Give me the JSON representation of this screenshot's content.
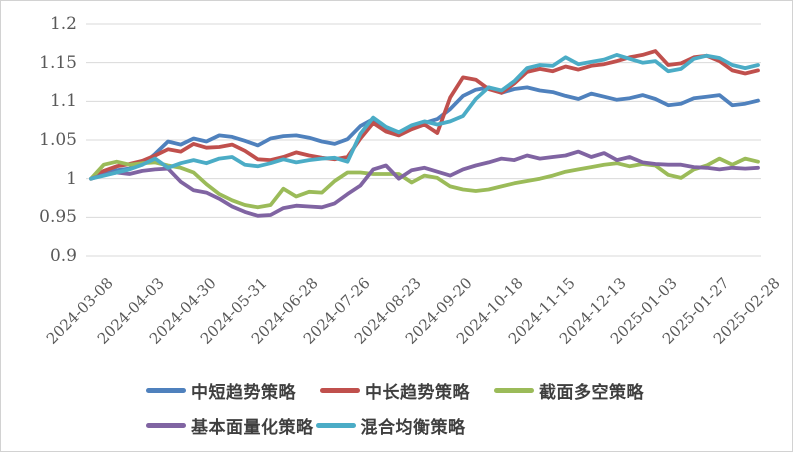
{
  "chart_data": {
    "type": "line",
    "title": "",
    "xlabel": "",
    "ylabel": "",
    "ylim": [
      0.9,
      1.2
    ],
    "grid": true,
    "legend_position": "bottom",
    "y_ticks": [
      "1.2",
      "1.15",
      "1.1",
      "1.05",
      "1",
      "0.95",
      "0.9"
    ],
    "x_labels": [
      "2024-03-08",
      "2024-04-03",
      "2024-04-30",
      "2024-05-31",
      "2024-06-28",
      "2024-07-26",
      "2024-08-23",
      "2024-09-20",
      "2024-10-18",
      "2024-11-15",
      "2024-12-13",
      "2025-01-03",
      "2025-01-27",
      "2025-02-28"
    ],
    "x_label_step": 4,
    "n_points": 53,
    "grid_color": "#d9d9d9",
    "series": [
      {
        "name": "中短趋势策略",
        "color": "#4F81BD",
        "values": [
          1.0,
          1.007,
          1.011,
          1.013,
          1.018,
          1.032,
          1.048,
          1.044,
          1.052,
          1.048,
          1.056,
          1.054,
          1.049,
          1.043,
          1.052,
          1.055,
          1.056,
          1.053,
          1.048,
          1.045,
          1.051,
          1.068,
          1.077,
          1.065,
          1.057,
          1.068,
          1.072,
          1.077,
          1.09,
          1.107,
          1.115,
          1.118,
          1.111,
          1.116,
          1.118,
          1.114,
          1.112,
          1.107,
          1.103,
          1.11,
          1.106,
          1.102,
          1.104,
          1.108,
          1.103,
          1.095,
          1.097,
          1.104,
          1.106,
          1.108,
          1.095,
          1.097,
          1.101
        ]
      },
      {
        "name": "中长趋势策略",
        "color": "#C0504D",
        "values": [
          1.0,
          1.01,
          1.016,
          1.019,
          1.023,
          1.03,
          1.038,
          1.035,
          1.045,
          1.04,
          1.041,
          1.044,
          1.036,
          1.025,
          1.024,
          1.028,
          1.034,
          1.03,
          1.027,
          1.025,
          1.028,
          1.052,
          1.072,
          1.061,
          1.056,
          1.064,
          1.07,
          1.059,
          1.105,
          1.131,
          1.128,
          1.116,
          1.111,
          1.123,
          1.138,
          1.142,
          1.139,
          1.145,
          1.141,
          1.146,
          1.148,
          1.152,
          1.157,
          1.16,
          1.165,
          1.147,
          1.149,
          1.157,
          1.159,
          1.152,
          1.14,
          1.136,
          1.14
        ]
      },
      {
        "name": "截面多空策略",
        "color": "#9BBB59",
        "values": [
          1.0,
          1.018,
          1.022,
          1.018,
          1.02,
          1.021,
          1.017,
          1.014,
          1.008,
          0.993,
          0.98,
          0.972,
          0.966,
          0.963,
          0.966,
          0.987,
          0.977,
          0.983,
          0.982,
          0.997,
          1.008,
          1.008,
          1.006,
          1.006,
          1.006,
          0.995,
          1.004,
          1.001,
          0.99,
          0.986,
          0.984,
          0.986,
          0.99,
          0.994,
          0.997,
          1.0,
          1.004,
          1.009,
          1.012,
          1.015,
          1.018,
          1.02,
          1.016,
          1.019,
          1.017,
          1.005,
          1.001,
          1.012,
          1.017,
          1.026,
          1.018,
          1.026,
          1.022
        ]
      },
      {
        "name": "基本面量化策略",
        "color": "#8064A2",
        "values": [
          1.0,
          1.005,
          1.008,
          1.006,
          1.01,
          1.012,
          1.013,
          0.996,
          0.985,
          0.982,
          0.974,
          0.964,
          0.957,
          0.952,
          0.953,
          0.962,
          0.965,
          0.964,
          0.963,
          0.968,
          0.98,
          0.991,
          1.012,
          1.017,
          1.0,
          1.011,
          1.014,
          1.009,
          1.004,
          1.012,
          1.017,
          1.021,
          1.026,
          1.024,
          1.03,
          1.026,
          1.028,
          1.03,
          1.035,
          1.028,
          1.033,
          1.024,
          1.028,
          1.021,
          1.019,
          1.018,
          1.018,
          1.015,
          1.014,
          1.012,
          1.014,
          1.013,
          1.014
        ]
      },
      {
        "name": "混合均衡策略",
        "color": "#4BACC6",
        "values": [
          1.0,
          1.004,
          1.008,
          1.012,
          1.018,
          1.026,
          1.014,
          1.02,
          1.024,
          1.02,
          1.026,
          1.028,
          1.018,
          1.016,
          1.02,
          1.025,
          1.021,
          1.024,
          1.026,
          1.027,
          1.022,
          1.058,
          1.079,
          1.067,
          1.06,
          1.069,
          1.074,
          1.07,
          1.074,
          1.081,
          1.103,
          1.118,
          1.114,
          1.126,
          1.143,
          1.147,
          1.146,
          1.157,
          1.148,
          1.151,
          1.154,
          1.16,
          1.155,
          1.15,
          1.152,
          1.139,
          1.142,
          1.155,
          1.159,
          1.156,
          1.147,
          1.143,
          1.147
        ]
      }
    ]
  }
}
